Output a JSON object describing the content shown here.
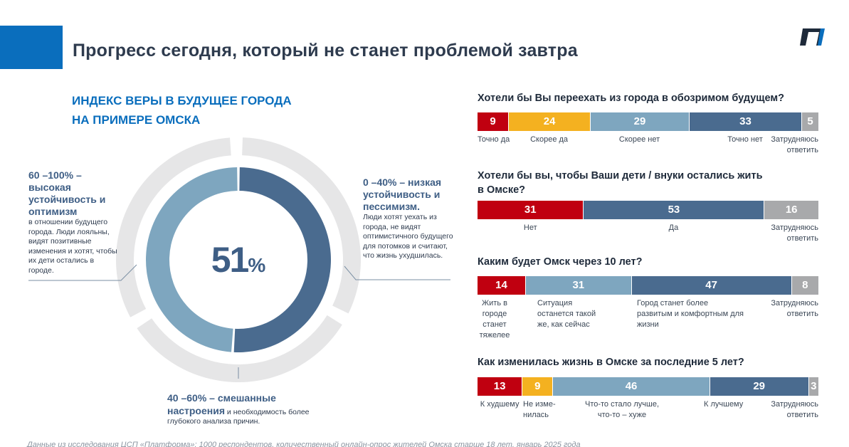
{
  "page_title": "Прогресс сегодня, который не станет проблемой завтра",
  "colors": {
    "accent": "#0a6ebd",
    "red": "#c00010",
    "yellow": "#f4b120",
    "light_blue": "#7ea6bf",
    "dark_blue": "#4a6b8f",
    "gray": "#a8a9ab",
    "ring": "#e6e6e7"
  },
  "logo": "platforma-logo",
  "index": {
    "title_line1": "ИНДЕКС ВЕРЫ В БУДУЩЕЕ ГОРОДА",
    "title_line2": "НА ПРИМЕРЕ ОМСКА",
    "value": "51",
    "value_suffix": "%",
    "high": {
      "head": "60 –100% – высокая устойчивость и оптимизм",
      "text": "в отношении будущего города. Люди лояльны, видят позитивные изменения и хотят, чтобы их дети остались в городе."
    },
    "low": {
      "head": "0 –40% – низкая устойчивость и пессимизм.",
      "text": "Люди хотят уехать из города, не видят оптимистичного будущего для потомков и считают, что жизнь ухудшилась."
    },
    "mid": {
      "head": "40 –60% – смешанные настроения",
      "text": " и необходимость более глубокого анализа причин."
    }
  },
  "questions": [
    {
      "title": "Хотели бы Вы переехать из города в обозримом будущем?",
      "values": [
        "9",
        "24",
        "29",
        "33",
        "5"
      ],
      "labels": [
        "Точно да",
        "Скорее да",
        "Скорее нет",
        "Точно нет",
        "Затрудняюсь ответить"
      ]
    },
    {
      "title_line1": "Хотели бы вы, чтобы Ваши дети / внуки остались жить",
      "title_line2": "в Омске?",
      "values": [
        "31",
        "53",
        "16"
      ],
      "labels": [
        "Нет",
        "Да",
        "Затрудняюсь ответить"
      ]
    },
    {
      "title": "Каким будет Омск через 10 лет?",
      "values": [
        "14",
        "31",
        "47",
        "8"
      ],
      "labels": [
        "Жить в городе станет тяжелее",
        "Ситуация останется такой же, как сейчас",
        "Город станет более развитым и комфортным для жизни",
        "Затрудняюсь ответить"
      ]
    },
    {
      "title": "Как изменилась жизнь в Омске за последние 5 лет?",
      "values": [
        "13",
        "9",
        "46",
        "29",
        "3"
      ],
      "labels": [
        "К худшему",
        "Не изме- нилась",
        "Что-то стало лучше, что-то – хуже",
        "К лучшему",
        "Затрудняюсь ответить"
      ]
    }
  ],
  "footnote": "Данные из исследования ЦСП «Платформа»: 1000 респондентов, количественный онлайн-опрос жителей Омска старше 18 лет, январь 2025 года",
  "chart_data": [
    {
      "type": "pie",
      "title": "ИНДЕКС ВЕРЫ В БУДУЩЕЕ ГОРОДА НА ПРИМЕРЕ ОМСКА",
      "values": [
        51,
        49
      ],
      "categories": [
        "",
        ""
      ],
      "center_label": "51%",
      "colors": [
        "#4a6b8f",
        "#7ea6bf"
      ]
    },
    {
      "type": "bar",
      "orientation": "horizontal-stacked-100",
      "title": "Хотели бы Вы переехать из города в обозримом будущем?",
      "categories": [
        "Точно да",
        "Скорее да",
        "Скорее нет",
        "Точно нет",
        "Затрудняюсь ответить"
      ],
      "values": [
        9,
        24,
        29,
        33,
        5
      ],
      "colors": [
        "#c00010",
        "#f4b120",
        "#7ea6bf",
        "#4a6b8f",
        "#a8a9ab"
      ]
    },
    {
      "type": "bar",
      "orientation": "horizontal-stacked-100",
      "title": "Хотели бы вы, чтобы Ваши дети / внуки остались жить в Омске?",
      "categories": [
        "Нет",
        "Да",
        "Затрудняюсь ответить"
      ],
      "values": [
        31,
        53,
        16
      ],
      "colors": [
        "#c00010",
        "#4a6b8f",
        "#a8a9ab"
      ]
    },
    {
      "type": "bar",
      "orientation": "horizontal-stacked-100",
      "title": "Каким будет Омск через 10 лет?",
      "categories": [
        "Жить в городе станет тяжелее",
        "Ситуация останется такой же, как сейчас",
        "Город станет более развитым и комфортным для жизни",
        "Затрудняюсь ответить"
      ],
      "values": [
        14,
        31,
        47,
        8
      ],
      "colors": [
        "#c00010",
        "#7ea6bf",
        "#4a6b8f",
        "#a8a9ab"
      ]
    },
    {
      "type": "bar",
      "orientation": "horizontal-stacked-100",
      "title": "Как изменилась жизнь в Омске за последние 5 лет?",
      "categories": [
        "К худшему",
        "Не изменилась",
        "Что-то стало лучше, что-то – хуже",
        "К лучшему",
        "Затрудняюсь ответить"
      ],
      "values": [
        13,
        9,
        46,
        29,
        3
      ],
      "colors": [
        "#c00010",
        "#f4b120",
        "#7ea6bf",
        "#4a6b8f",
        "#a8a9ab"
      ]
    }
  ]
}
